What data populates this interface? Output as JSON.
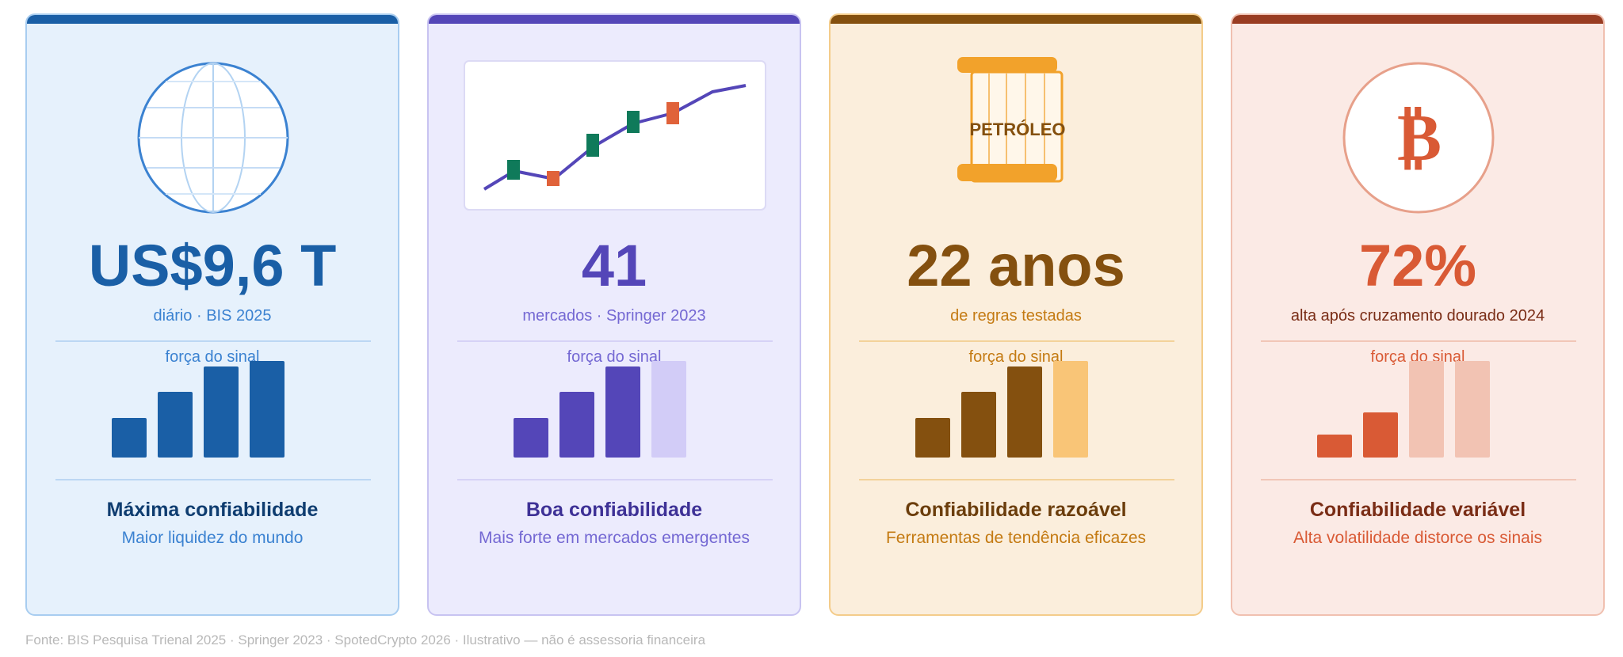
{
  "cards": [
    {
      "stat": "US$9,6 T",
      "subtitle": "diário · BIS 2025",
      "signal_label": "força do sinal",
      "signal_level": 4,
      "verdict": "Máxima confiabilidade",
      "description": "Maior liquidez do mundo",
      "icon": "globe-icon",
      "accent": "#1a5fa6"
    },
    {
      "stat": "41",
      "subtitle": "mercados · Springer 2023",
      "signal_label": "força do sinal",
      "signal_level": 3,
      "verdict": "Boa confiabilidade",
      "description": "Mais forte em mercados emergentes",
      "icon": "candlestick-chart-icon",
      "accent": "#5446b8"
    },
    {
      "stat": "22 anos",
      "subtitle": "de regras testadas",
      "signal_label": "força do sinal",
      "signal_level": 3,
      "verdict": "Confiabilidade razoável",
      "description": "Ferramentas de tendência eficazes",
      "icon": "oil-barrel-icon",
      "icon_label": "PETRÓLEO",
      "accent": "#84500f"
    },
    {
      "stat": "72%",
      "subtitle": "alta após cruzamento dourado 2024",
      "signal_label": "força do sinal",
      "signal_level": 2,
      "verdict": "Confiabilidade variável",
      "description": "Alta volatilidade distorce os sinais",
      "icon": "bitcoin-icon",
      "icon_label": "₿",
      "accent": "#d95a35"
    }
  ],
  "footer": "Fonte: BIS Pesquisa Trienal 2025 · Springer 2023 · SpotedCrypto 2026 · Ilustrativo — não é assessoria financeira"
}
